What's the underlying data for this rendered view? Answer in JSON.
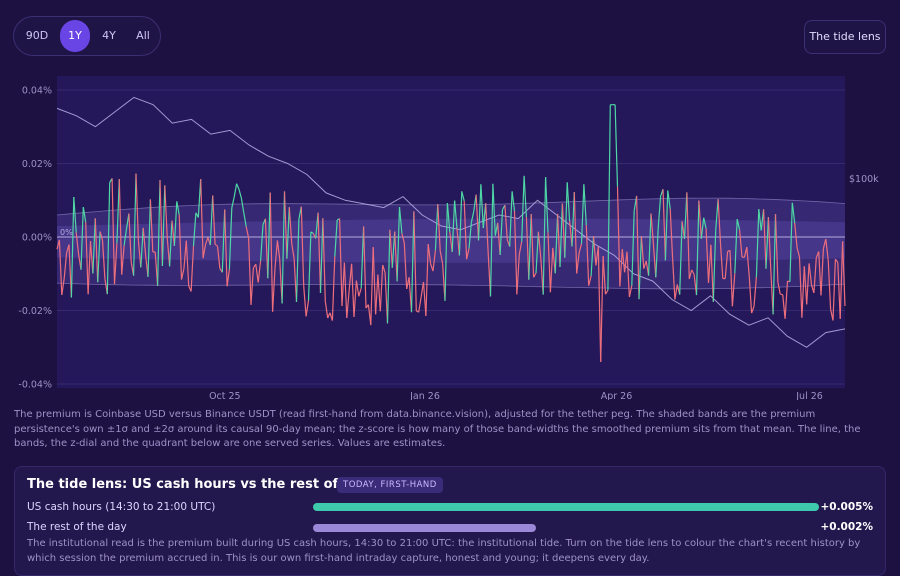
{
  "range_selector": {
    "options": [
      "90D",
      "1Y",
      "4Y",
      "All"
    ],
    "active": "1Y"
  },
  "lens_button": "The tide lens",
  "chart_data": {
    "type": "line",
    "y_ticks": [
      "0.04%",
      "0.02%",
      "0.00%",
      "-0.02%",
      "-0.04%"
    ],
    "ylim": [
      -0.04,
      0.04
    ],
    "x_ticks": [
      "Oct 25",
      "Jan 26",
      "Apr 26",
      "Jul 26"
    ],
    "right_axis_label": "$100k",
    "zero_band_label": "0%",
    "series": [
      {
        "name": "premium",
        "color_up": "#4fd8a6",
        "color_down": "#ee6f7c"
      },
      {
        "name": "price",
        "color": "#b7b0e8"
      }
    ],
    "bands": [
      "±1σ",
      "±2σ"
    ],
    "price_points": [
      0.035,
      0.033,
      0.03,
      0.034,
      0.038,
      0.036,
      0.031,
      0.032,
      0.028,
      0.029,
      0.025,
      0.022,
      0.02,
      0.017,
      0.012,
      0.01,
      0.009,
      0.008,
      0.011,
      0.006,
      0.003,
      0.002,
      0.004,
      0.006,
      0.005,
      0.01,
      0.006,
      0.002,
      -0.002,
      -0.005,
      -0.01,
      -0.012,
      -0.017,
      -0.02,
      -0.016,
      -0.021,
      -0.024,
      -0.022,
      -0.027,
      -0.03,
      -0.026,
      -0.025
    ]
  },
  "caption": "The premium is Coinbase USD versus Binance USDT (read first-hand from data.binance.vision), adjusted for the tether peg. The shaded bands are the premium persistence's own ±1σ and ±2σ around its causal 90-day mean; the z-score is how many of those band-widths the smoothed premium sits from that mean. The line, the bands, the z-dial and the quadrant below are one served series. Values are estimates.",
  "lens_panel": {
    "title": "The tide lens: US cash hours vs the rest of the day",
    "badge": "TODAY, FIRST-HAND",
    "rows": [
      {
        "label": "US cash hours (14:30 to 21:00 UTC)",
        "value": "+0.005%",
        "fill": 1.0,
        "color": "#3fc9ac"
      },
      {
        "label": "The rest of the day",
        "value": "+0.002%",
        "fill": 0.44,
        "color": "#9b88d8"
      }
    ],
    "note": "The institutional read is the premium built during US cash hours, 14:30 to 21:00 UTC: the institutional tide. Turn on the tide lens to colour the chart's recent history by which session the premium accrued in. This is our own first-hand intraday capture, honest and young; it deepens every day."
  }
}
